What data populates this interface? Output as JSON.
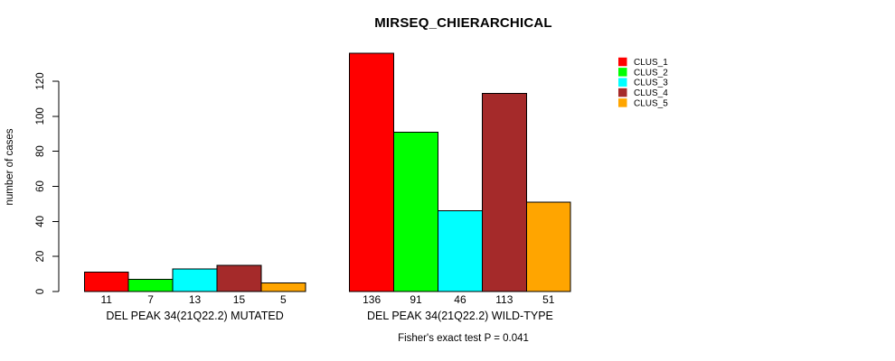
{
  "chart_data": {
    "type": "bar",
    "title": "MIRSEQ_CHIERARCHICAL",
    "ylabel": "number of cases",
    "xlabel": "",
    "categories": [
      "DEL PEAK 34(21Q22.2) MUTATED",
      "DEL PEAK 34(21Q22.2) WILD-TYPE"
    ],
    "series": [
      {
        "name": "CLUS_1",
        "color": "#FF0000",
        "values": [
          11,
          136
        ]
      },
      {
        "name": "CLUS_2",
        "color": "#00FF00",
        "values": [
          7,
          91
        ]
      },
      {
        "name": "CLUS_3",
        "color": "#00FFFF",
        "values": [
          13,
          46
        ]
      },
      {
        "name": "CLUS_4",
        "color": "#A52A2A",
        "values": [
          15,
          113
        ]
      },
      {
        "name": "CLUS_5",
        "color": "#FFA500",
        "values": [
          5,
          51
        ]
      }
    ],
    "yticks": [
      0,
      20,
      40,
      60,
      80,
      100,
      120
    ],
    "ylim": [
      0,
      136
    ],
    "grid": false,
    "bar_value_labels_shown": true,
    "legend": {
      "position": "topright",
      "entries": [
        "CLUS_1",
        "CLUS_2",
        "CLUS_3",
        "CLUS_4",
        "CLUS_5"
      ]
    },
    "annotation": "Fisher's exact test P = 0.041"
  }
}
